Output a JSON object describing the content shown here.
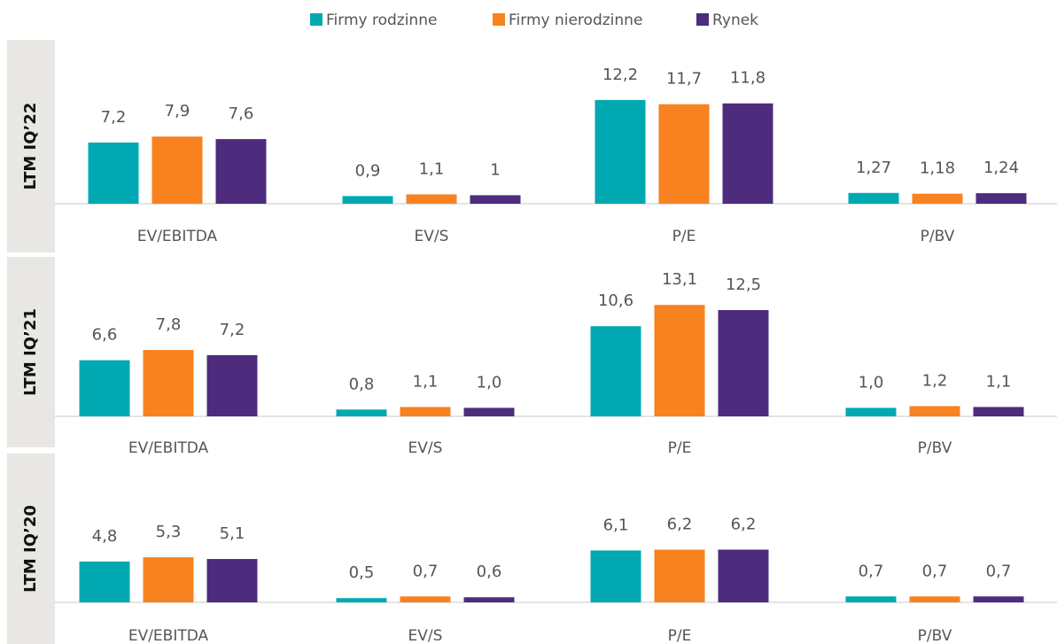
{
  "chart_data": [
    {
      "type": "bar",
      "title": "LTM IQ’22",
      "categories": [
        "EV/EBITDA",
        "EV/S",
        "P/E",
        "P/BV"
      ],
      "series": [
        {
          "name": "Firmy rodzinne",
          "color": "#00a9b1",
          "values": [
            7.2,
            0.9,
            12.2,
            1.27
          ],
          "value_labels": [
            "7,2",
            "0,9",
            "12,2",
            "1,27"
          ]
        },
        {
          "name": "Firmy nierodzinne",
          "color": "#f7821f",
          "values": [
            7.9,
            1.1,
            11.7,
            1.18
          ],
          "value_labels": [
            "7,9",
            "1,1",
            "11,7",
            "1,18"
          ]
        },
        {
          "name": "Rynek",
          "color": "#4d2c7e",
          "values": [
            7.6,
            1,
            11.8,
            1.24
          ],
          "value_labels": [
            "7,6",
            "1",
            "11,8",
            "1,24"
          ]
        }
      ]
    },
    {
      "type": "bar",
      "title": "LTM IQ’21",
      "categories": [
        "EV/EBITDA",
        "EV/S",
        "P/E",
        "P/BV"
      ],
      "series": [
        {
          "name": "Firmy rodzinne",
          "color": "#00a9b1",
          "values": [
            6.6,
            0.8,
            10.6,
            1.0
          ],
          "value_labels": [
            "6,6",
            "0,8",
            "10,6",
            "1,0"
          ]
        },
        {
          "name": "Firmy nierodzinne",
          "color": "#f7821f",
          "values": [
            7.8,
            1.1,
            13.1,
            1.2
          ],
          "value_labels": [
            "7,8",
            "1,1",
            "13,1",
            "1,2"
          ]
        },
        {
          "name": "Rynek",
          "color": "#4d2c7e",
          "values": [
            7.2,
            1.0,
            12.5,
            1.1
          ],
          "value_labels": [
            "7,2",
            "1,0",
            "12,5",
            "1,1"
          ]
        }
      ]
    },
    {
      "type": "bar",
      "title": "LTM IQ’20",
      "categories": [
        "EV/EBITDA",
        "EV/S",
        "P/E",
        "P/BV"
      ],
      "series": [
        {
          "name": "Firmy rodzinne",
          "color": "#00a9b1",
          "values": [
            4.8,
            0.5,
            6.1,
            0.7
          ],
          "value_labels": [
            "4,8",
            "0,5",
            "6,1",
            "0,7"
          ]
        },
        {
          "name": "Firmy nierodzinne",
          "color": "#f7821f",
          "values": [
            5.3,
            0.7,
            6.2,
            0.7
          ],
          "value_labels": [
            "5,3",
            "0,7",
            "6,2",
            "0,7"
          ]
        },
        {
          "name": "Rynek",
          "color": "#4d2c7e",
          "values": [
            5.1,
            0.6,
            6.2,
            0.7
          ],
          "value_labels": [
            "5,1",
            "0,6",
            "6,2",
            "0,7"
          ]
        }
      ]
    }
  ]
}
